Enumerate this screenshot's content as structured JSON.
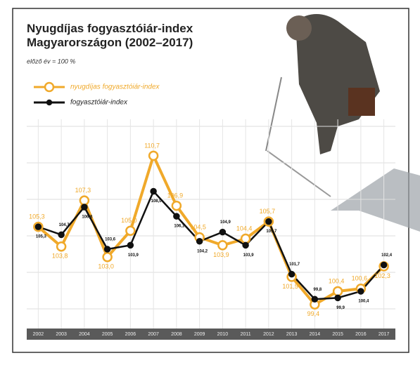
{
  "chart_data": {
    "type": "line",
    "title": "Nyugdíjas fogyasztóiár-index\nMagyarországon (2002–2017)",
    "subtitle": "előző év = 100 %",
    "categories": [
      "2002",
      "2003",
      "2004",
      "2005",
      "2006",
      "2007",
      "2008",
      "2009",
      "2010",
      "2011",
      "2012",
      "2013",
      "2014",
      "2015",
      "2016",
      "2017"
    ],
    "series": [
      {
        "name": "nyugdíjas fogyasztóiár-index",
        "color": "#f0a92a",
        "values": [
          105.3,
          103.8,
          107.3,
          103.0,
          105.0,
          110.7,
          106.9,
          104.5,
          103.9,
          104.4,
          105.7,
          101.5,
          99.4,
          100.4,
          100.6,
          102.3
        ],
        "value_labels": [
          "105,3",
          "103,8",
          "107,3",
          "103,0",
          "105,0",
          "110,7",
          "106,9",
          "104,5",
          "103,9",
          "104,4",
          "105,7",
          "101,5",
          "99,4",
          "100,4",
          "100,6",
          "102,3"
        ]
      },
      {
        "name": "fogyasztóiár-index",
        "color": "#111111",
        "values": [
          105.3,
          104.7,
          106.8,
          103.6,
          103.9,
          108.0,
          106.1,
          104.2,
          104.9,
          103.9,
          105.7,
          101.7,
          99.8,
          99.9,
          100.4,
          102.4
        ],
        "value_labels": [
          "105,3",
          "104,7",
          "106,8",
          "103,6",
          "103,9",
          "108,0",
          "106,1",
          "104,2",
          "104,9",
          "103,9",
          "105,7",
          "101,7",
          "99,8",
          "99,9",
          "100,4",
          "102,4"
        ]
      }
    ],
    "ylim": [
      98,
      114
    ],
    "grid": true
  }
}
